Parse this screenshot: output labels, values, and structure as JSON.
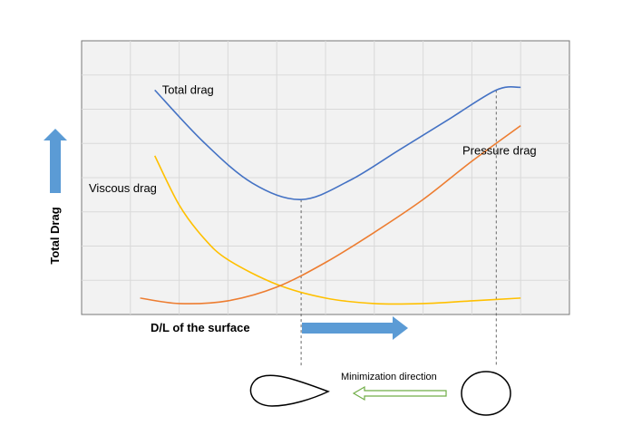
{
  "chart_data": {
    "type": "line",
    "grid": true,
    "ylabel": "Total Drag",
    "xlabel": "D/L of the surface",
    "xlim": [
      0,
      10
    ],
    "ylim": [
      0,
      10
    ],
    "series": [
      {
        "name": "Total drag",
        "label_pos": "start",
        "color": "#4472C4",
        "x": [
          1.5,
          2.5,
          3.5,
          4.5,
          5.5,
          6.5,
          7.5,
          8.5,
          9.0
        ],
        "y": [
          8.2,
          6.3,
          4.8,
          4.2,
          4.9,
          6.0,
          7.1,
          8.2,
          8.3
        ]
      },
      {
        "name": "Viscous drag",
        "label_pos": "left",
        "color": "#FFC000",
        "x": [
          1.5,
          2.0,
          2.5,
          3.0,
          4.0,
          5.0,
          6.0,
          7.0,
          8.0,
          9.0
        ],
        "y": [
          5.8,
          4.0,
          2.8,
          2.0,
          1.1,
          0.6,
          0.4,
          0.4,
          0.5,
          0.6
        ]
      },
      {
        "name": "Pressure drag",
        "label_pos": "right",
        "color": "#ED7D31",
        "x": [
          1.2,
          2.0,
          3.0,
          4.0,
          5.0,
          6.0,
          7.0,
          8.0,
          9.0
        ],
        "y": [
          0.6,
          0.4,
          0.5,
          1.0,
          1.9,
          3.0,
          4.2,
          5.6,
          6.9
        ]
      }
    ],
    "drop_lines_x": [
      4.5,
      8.5
    ]
  },
  "annotation": {
    "minimization_label": "Minimization direction",
    "arrow_color": "#70AD47",
    "axis_arrow_color": "#5B9BD5"
  }
}
